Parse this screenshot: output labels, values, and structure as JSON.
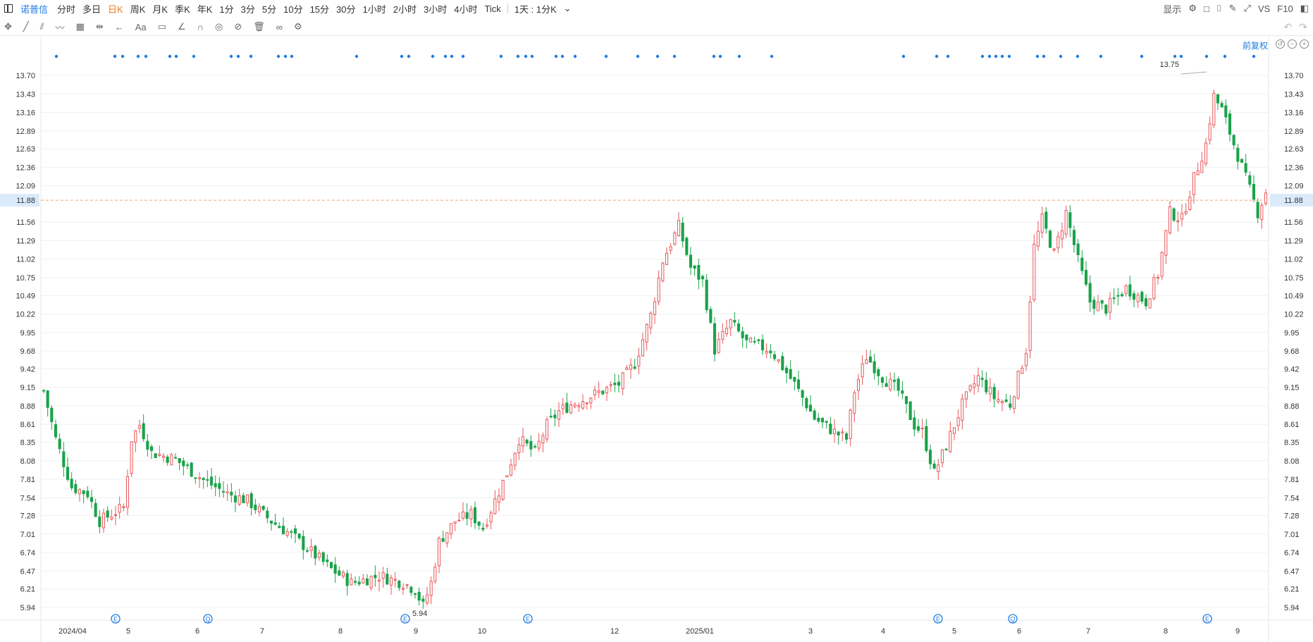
{
  "toolbar": {
    "stock_name": "诺普信",
    "periods": [
      "分时",
      "多日",
      "日K",
      "周K",
      "月K",
      "季K",
      "年K",
      "1分",
      "3分",
      "5分",
      "10分",
      "15分",
      "30分",
      "1小时",
      "2小时",
      "3小时",
      "4小时",
      "Tick"
    ],
    "active_period": "日K",
    "interval_select": "1天 : 1分K",
    "display_label": "显示",
    "vs_label": "VS",
    "f10_label": "F10"
  },
  "adjust_label": "前复权",
  "chart_data": {
    "type": "candlestick",
    "y_ticks": [
      "13.70",
      "13.43",
      "13.16",
      "12.89",
      "12.63",
      "12.36",
      "12.09",
      "11.88",
      "11.56",
      "11.29",
      "11.02",
      "10.75",
      "10.49",
      "10.22",
      "9.95",
      "9.68",
      "9.42",
      "9.15",
      "8.88",
      "8.61",
      "8.35",
      "8.08",
      "7.81",
      "7.54",
      "7.28",
      "7.01",
      "6.74",
      "6.47",
      "6.21",
      "5.94"
    ],
    "ylim": [
      5.94,
      13.7
    ],
    "x_ticks": [
      "2024/04",
      "5",
      "6",
      "7",
      "8",
      "9",
      "10",
      "12",
      "2025/01",
      "3",
      "4",
      "5",
      "6",
      "7",
      "8",
      "9"
    ],
    "current_price": 11.88,
    "max_marker": "13.75",
    "min_marker": "5.94",
    "event_markers": [
      "E",
      "Q",
      "E",
      "E",
      "E",
      "Q",
      "E"
    ],
    "close_path": [
      [
        0,
        9.1
      ],
      [
        3,
        8.4
      ],
      [
        7,
        7.7
      ],
      [
        11,
        7.6
      ],
      [
        14,
        7.2
      ],
      [
        17,
        7.3
      ],
      [
        20,
        7.4
      ],
      [
        22,
        8.4
      ],
      [
        24,
        8.6
      ],
      [
        27,
        8.2
      ],
      [
        33,
        8.1
      ],
      [
        40,
        7.8
      ],
      [
        46,
        7.6
      ],
      [
        51,
        7.5
      ],
      [
        57,
        7.2
      ],
      [
        62,
        7.0
      ],
      [
        66,
        6.8
      ],
      [
        72,
        6.5
      ],
      [
        77,
        6.3
      ],
      [
        84,
        6.4
      ],
      [
        90,
        6.3
      ],
      [
        93,
        6.2
      ],
      [
        95,
        5.96
      ],
      [
        97,
        6.3
      ],
      [
        99,
        6.9
      ],
      [
        103,
        7.2
      ],
      [
        107,
        7.3
      ],
      [
        110,
        7.1
      ],
      [
        113,
        7.5
      ],
      [
        116,
        7.9
      ],
      [
        119,
        8.4
      ],
      [
        123,
        8.2
      ],
      [
        126,
        8.6
      ],
      [
        129,
        8.8
      ],
      [
        132,
        8.9
      ],
      [
        136,
        9.0
      ],
      [
        140,
        9.1
      ],
      [
        144,
        9.2
      ],
      [
        148,
        9.5
      ],
      [
        152,
        10.2
      ],
      [
        155,
        11.0
      ],
      [
        159,
        11.5
      ],
      [
        162,
        10.9
      ],
      [
        165,
        10.7
      ],
      [
        168,
        9.7
      ],
      [
        172,
        10.1
      ],
      [
        176,
        9.8
      ],
      [
        182,
        9.7
      ],
      [
        188,
        9.2
      ],
      [
        193,
        8.7
      ],
      [
        198,
        8.5
      ],
      [
        201,
        8.4
      ],
      [
        203,
        9.1
      ],
      [
        206,
        9.6
      ],
      [
        210,
        9.3
      ],
      [
        214,
        9.1
      ],
      [
        218,
        8.6
      ],
      [
        220,
        8.5
      ],
      [
        223,
        7.9
      ],
      [
        226,
        8.3
      ],
      [
        230,
        8.9
      ],
      [
        234,
        9.3
      ],
      [
        238,
        9.0
      ],
      [
        242,
        8.9
      ],
      [
        246,
        9.7
      ],
      [
        248,
        11.2
      ],
      [
        250,
        11.6
      ],
      [
        253,
        11.1
      ],
      [
        256,
        11.7
      ],
      [
        259,
        11.0
      ],
      [
        262,
        10.4
      ],
      [
        266,
        10.3
      ],
      [
        271,
        10.6
      ],
      [
        276,
        10.4
      ],
      [
        279,
        10.8
      ],
      [
        282,
        11.7
      ],
      [
        285,
        11.6
      ],
      [
        288,
        12.2
      ],
      [
        291,
        12.7
      ],
      [
        293,
        13.4
      ],
      [
        295,
        13.2
      ],
      [
        298,
        12.7
      ],
      [
        301,
        12.2
      ],
      [
        304,
        11.7
      ],
      [
        306,
        12.0
      ]
    ],
    "x_domain": [
      0,
      306
    ]
  },
  "colors": {
    "up": "#e8575a",
    "down": "#1aa24a",
    "price_line": "#f4a36a",
    "accent": "#1e7be0",
    "grid": "#f0f0f0"
  }
}
